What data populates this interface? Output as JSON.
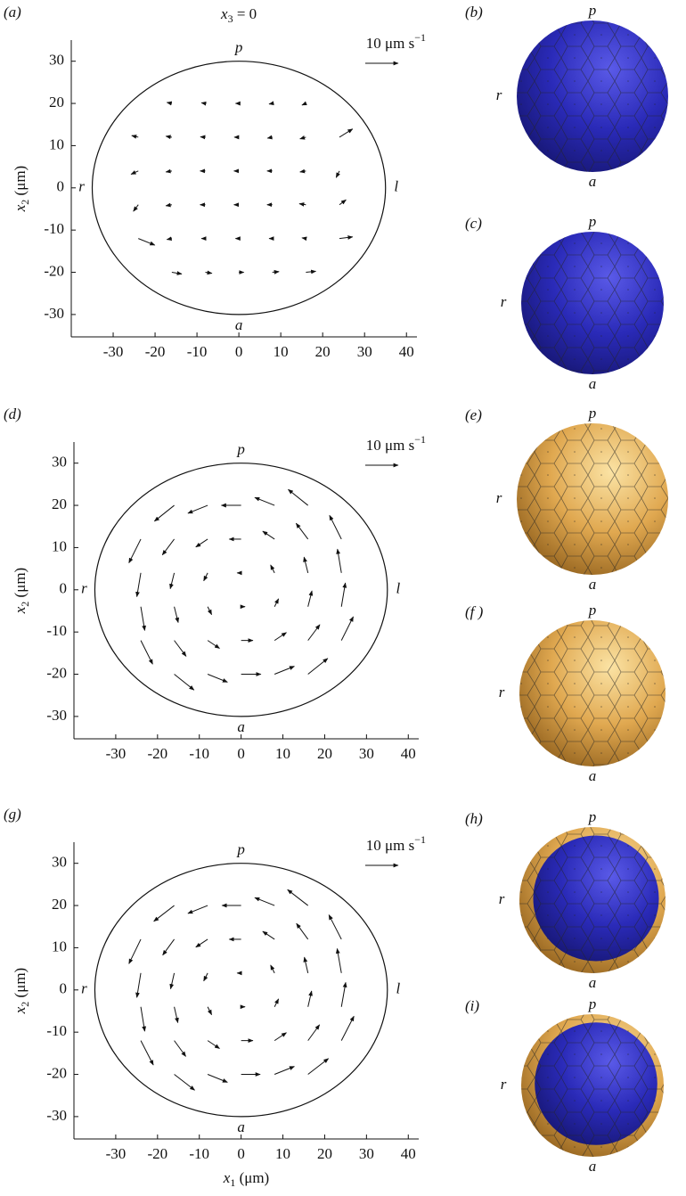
{
  "chart_data": [
    {
      "type": "quiver",
      "panel_label": "(a)",
      "title": {
        "base": "x",
        "sub": "3",
        "rest": " = 0"
      },
      "ylabel": {
        "base": "x",
        "sub": "2",
        "rest": " (μm)"
      },
      "reference_arrow": {
        "text": "10 μm s",
        "sup": "−1",
        "value": 10
      },
      "labels": {
        "p": "p",
        "r": "r",
        "l": "l",
        "a": "a"
      },
      "boundary_radii": [
        35,
        30
      ],
      "xlim": [
        -40,
        42.5
      ],
      "ylim": [
        -35.3,
        35
      ],
      "xticks": [
        -30,
        -20,
        -10,
        0,
        10,
        20,
        30,
        40
      ],
      "yticks": [
        -30,
        -20,
        -10,
        0,
        10,
        20,
        30
      ],
      "x": [
        -16,
        -8,
        0,
        8,
        16,
        -24,
        -16,
        -8,
        0,
        8,
        16,
        24,
        -24,
        -16,
        -8,
        0,
        8,
        16,
        24,
        -24,
        -16,
        -8,
        0,
        8,
        16,
        24,
        -24,
        -16,
        -8,
        0,
        8,
        16,
        24,
        -16,
        -8,
        0,
        8,
        16
      ],
      "y": [
        20,
        20,
        20,
        20,
        20,
        12,
        12,
        12,
        12,
        12,
        12,
        12,
        4,
        4,
        4,
        4,
        4,
        4,
        4,
        -4,
        -4,
        -4,
        -4,
        -4,
        -4,
        -4,
        -12,
        -12,
        -12,
        -12,
        -12,
        -12,
        -12,
        -20,
        -20,
        -20,
        -20,
        -20
      ],
      "u": [
        -1.5,
        -1.2,
        -1,
        -1,
        -1.2,
        -2,
        -1.8,
        -1.5,
        -1.4,
        -1.5,
        -1.8,
        4,
        -2.2,
        -1.8,
        -1.6,
        -1.5,
        -1.6,
        -1.8,
        -1,
        -1.5,
        -1.8,
        -1.6,
        -1.5,
        -1.6,
        -2,
        2,
        5,
        -1.5,
        -1.2,
        -1,
        -1,
        -1.2,
        4,
        3,
        2,
        1.5,
        2,
        3
      ],
      "v": [
        0.3,
        0.2,
        0,
        -0.2,
        -0.5,
        0.5,
        0.3,
        0.1,
        0,
        -0.3,
        -0.5,
        2.5,
        -1,
        -0.3,
        0,
        0,
        0,
        -0.3,
        -2,
        -2,
        -0.3,
        0,
        0,
        0,
        0.3,
        1.5,
        -2,
        -0.3,
        0,
        0,
        0,
        0.2,
        0.5,
        -0.5,
        -0.3,
        0,
        0.2,
        0.3
      ]
    },
    {
      "type": "quiver",
      "panel_label": "(d)",
      "ylabel": {
        "base": "x",
        "sub": "2",
        "rest": " (μm)"
      },
      "reference_arrow": {
        "text": "10 μm s",
        "sup": "−1",
        "value": 10
      },
      "labels": {
        "p": "p",
        "r": "r",
        "l": "l",
        "a": "a"
      },
      "boundary_radii": [
        35,
        30
      ],
      "xlim": [
        -40,
        42.5
      ],
      "ylim": [
        -35.3,
        35
      ],
      "xticks": [
        -30,
        -20,
        -10,
        0,
        10,
        20,
        30,
        40
      ],
      "yticks": [
        -30,
        -20,
        -10,
        0,
        10,
        20,
        30
      ],
      "x": [
        -16,
        -8,
        0,
        8,
        16,
        -24,
        -16,
        -8,
        0,
        8,
        16,
        24,
        -24,
        -16,
        -8,
        0,
        8,
        16,
        24,
        -24,
        -16,
        -8,
        0,
        8,
        16,
        24,
        -24,
        -16,
        -8,
        0,
        8,
        16,
        24,
        -16,
        -8,
        0,
        8,
        16
      ],
      "y": [
        20,
        20,
        20,
        20,
        20,
        12,
        12,
        12,
        12,
        12,
        12,
        12,
        4,
        4,
        4,
        4,
        4,
        4,
        4,
        -4,
        -4,
        -4,
        -4,
        -4,
        -4,
        -4,
        -12,
        -12,
        -12,
        -12,
        -12,
        -12,
        -12,
        -20,
        -20,
        -20,
        -20,
        -20
      ],
      "u": [
        -6,
        -6,
        -6,
        -6,
        -6,
        -3.6,
        -3.6,
        -3.6,
        -3.6,
        -3.6,
        -3.6,
        -3.6,
        -1.2,
        -1.2,
        -1.2,
        -1.2,
        -1.2,
        -1.2,
        -1.2,
        1.2,
        1.2,
        1.2,
        1.2,
        1.2,
        1.2,
        1.2,
        3.6,
        3.6,
        3.6,
        3.6,
        3.6,
        3.6,
        3.6,
        6,
        6,
        6,
        6,
        6
      ],
      "v": [
        -4.8,
        -2.4,
        0,
        2.4,
        4.8,
        -7.2,
        -4.8,
        -2.4,
        0,
        2.4,
        4.8,
        7.2,
        -7.2,
        -4.8,
        -2.4,
        0,
        2.4,
        4.8,
        7.2,
        -7.2,
        -4.8,
        -2.4,
        0,
        2.4,
        4.8,
        7.2,
        -7.2,
        -4.8,
        -2.4,
        0,
        2.4,
        4.8,
        7.2,
        -4.8,
        -2.4,
        0,
        2.4,
        4.8
      ]
    },
    {
      "type": "quiver",
      "panel_label": "(g)",
      "ylabel": {
        "base": "x",
        "sub": "2",
        "rest": " (μm)"
      },
      "xlabel": {
        "base": "x",
        "sub": "1",
        "rest": " (μm)"
      },
      "reference_arrow": {
        "text": "10 μm s",
        "sup": "−1",
        "value": 10
      },
      "labels": {
        "p": "p",
        "r": "r",
        "l": "l",
        "a": "a"
      },
      "boundary_radii": [
        35,
        30
      ],
      "xlim": [
        -40,
        42.5
      ],
      "ylim": [
        -35.3,
        35
      ],
      "xticks": [
        -30,
        -20,
        -10,
        0,
        10,
        20,
        30,
        40
      ],
      "yticks": [
        -30,
        -20,
        -10,
        0,
        10,
        20,
        30
      ],
      "x": [
        -16,
        -8,
        0,
        8,
        16,
        -24,
        -16,
        -8,
        0,
        8,
        16,
        24,
        -24,
        -16,
        -8,
        0,
        8,
        16,
        24,
        -24,
        -16,
        -8,
        0,
        8,
        16,
        24,
        -24,
        -16,
        -8,
        0,
        8,
        16,
        24,
        -16,
        -8,
        0,
        8,
        16
      ],
      "y": [
        20,
        20,
        20,
        20,
        20,
        12,
        12,
        12,
        12,
        12,
        12,
        12,
        4,
        4,
        4,
        4,
        4,
        4,
        4,
        -4,
        -4,
        -4,
        -4,
        -4,
        -4,
        -4,
        -12,
        -12,
        -12,
        -12,
        -12,
        -12,
        -12,
        -20,
        -20,
        -20,
        -20,
        -20
      ],
      "u": [
        -6.2,
        -6,
        -5.8,
        -6,
        -6.2,
        -3.6,
        -3.5,
        -3.6,
        -3.6,
        -3.6,
        -3.5,
        -3.8,
        -1.2,
        -1.1,
        -1.2,
        -1.2,
        -1.2,
        -1.1,
        -1.3,
        1.2,
        1.1,
        1.2,
        1.2,
        1.2,
        1.1,
        1.3,
        3.8,
        3.5,
        3.6,
        3.6,
        3.6,
        3.5,
        3.8,
        6.2,
        6,
        5.8,
        6,
        6.2
      ],
      "v": [
        -4.8,
        -2.4,
        0,
        2.4,
        4.8,
        -7.4,
        -4.8,
        -2.4,
        0,
        2.4,
        4.8,
        7.4,
        -7.4,
        -4.8,
        -2.4,
        0,
        2.4,
        4.8,
        7.4,
        -7.4,
        -4.8,
        -2.4,
        0,
        2.4,
        4.8,
        7.4,
        -7.4,
        -4.8,
        -2.4,
        0,
        2.4,
        4.8,
        7.4,
        -4.8,
        -2.4,
        0,
        2.4,
        4.8
      ]
    }
  ],
  "sphere_panels": [
    {
      "label": "(b)",
      "p": "p",
      "r": "r",
      "a": "a"
    },
    {
      "label": "(c)",
      "p": "p",
      "r": "r",
      "a": "a"
    },
    {
      "label": "(e)",
      "p": "p",
      "r": "r",
      "a": "a"
    },
    {
      "label": "(f )",
      "p": "p",
      "r": "r",
      "a": "a"
    },
    {
      "label": "(h)",
      "p": "p",
      "r": "r",
      "a": "a"
    },
    {
      "label": "(i)",
      "p": "p",
      "r": "r",
      "a": "a"
    }
  ]
}
